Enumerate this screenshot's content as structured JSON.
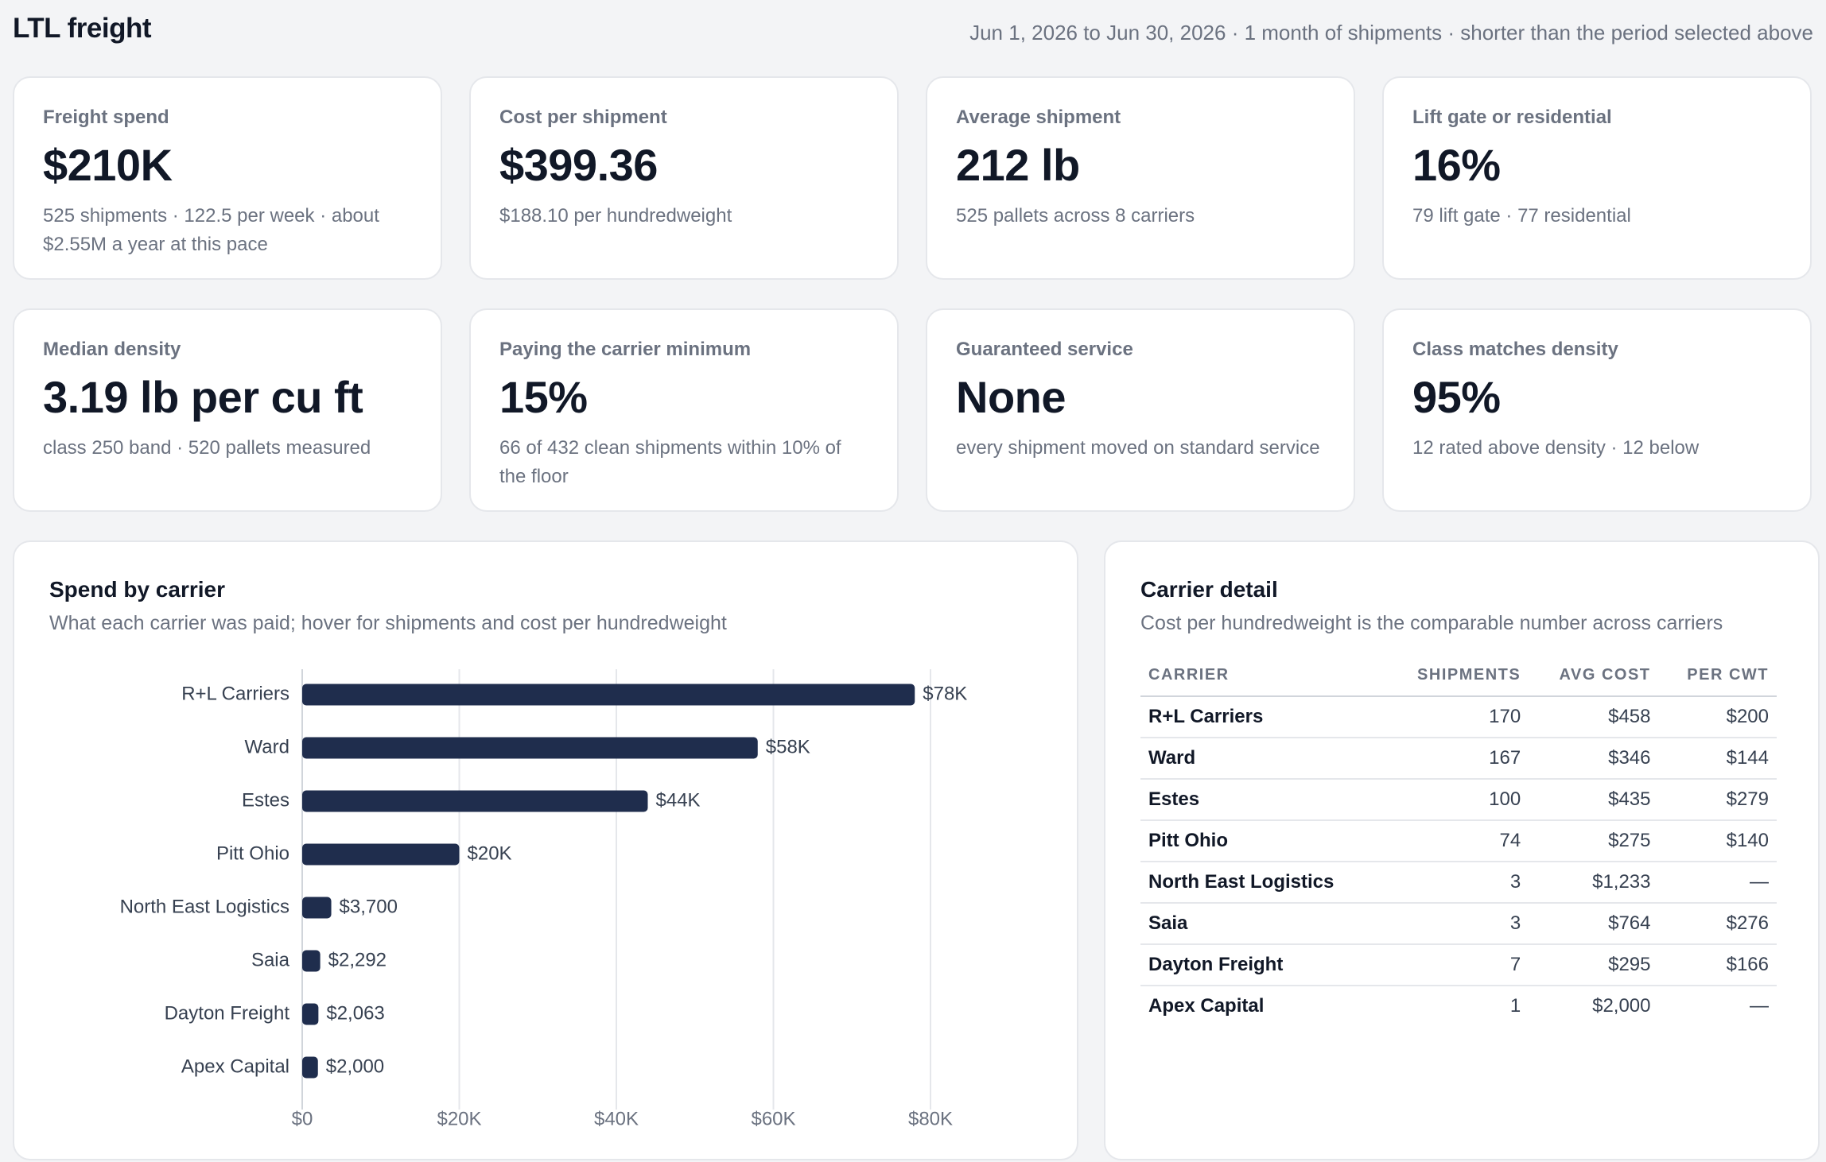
{
  "header": {
    "title": "LTL freight",
    "range": "Jun 1, 2026 to Jun 30, 2026 · 1 month of shipments · shorter than the period selected above"
  },
  "cards": [
    {
      "label": "Freight spend",
      "value": "$210K",
      "sub": "525 shipments · 122.5 per week · about $2.55M a year at this pace"
    },
    {
      "label": "Cost per shipment",
      "value": "$399.36",
      "sub": "$188.10 per hundredweight"
    },
    {
      "label": "Average shipment",
      "value": "212 lb",
      "sub": "525 pallets across 8 carriers"
    },
    {
      "label": "Lift gate or residential",
      "value": "16%",
      "sub": "79 lift gate · 77 residential"
    },
    {
      "label": "Median density",
      "value": "3.19 lb per cu ft",
      "sub": "class 250 band · 520 pallets measured"
    },
    {
      "label": "Paying the carrier minimum",
      "value": "15%",
      "sub": "66 of 432 clean shipments within 10% of the floor"
    },
    {
      "label": "Guaranteed service",
      "value": "None",
      "sub": "every shipment moved on standard service"
    },
    {
      "label": "Class matches density",
      "value": "95%",
      "sub": "12 rated above density · 12 below"
    }
  ],
  "spend_panel": {
    "title": "Spend by carrier",
    "subtitle": "What each carrier was paid; hover for shipments and cost per hundredweight"
  },
  "chart_data": {
    "type": "bar",
    "orientation": "horizontal",
    "categories": [
      "R+L Carriers",
      "Ward",
      "Estes",
      "Pitt Ohio",
      "North East Logistics",
      "Saia",
      "Dayton Freight",
      "Apex Capital"
    ],
    "values": [
      78000,
      58000,
      44000,
      20000,
      3700,
      2292,
      2063,
      2000
    ],
    "value_labels": [
      "$78K",
      "$58K",
      "$44K",
      "$20K",
      "$3,700",
      "$2,292",
      "$2,063",
      "$2,000"
    ],
    "xlim": [
      0,
      80000
    ],
    "xticks": [
      0,
      20000,
      40000,
      60000,
      80000
    ],
    "xtick_labels": [
      "$0",
      "$20K",
      "$40K",
      "$60K",
      "$80K"
    ],
    "grid": true,
    "bar_color": "#1f2d4d"
  },
  "detail_panel": {
    "title": "Carrier detail",
    "subtitle": "Cost per hundredweight is the comparable number across carriers",
    "columns": [
      "CARRIER",
      "SHIPMENTS",
      "AVG COST",
      "PER CWT"
    ],
    "rows": [
      [
        "R+L Carriers",
        "170",
        "$458",
        "$200"
      ],
      [
        "Ward",
        "167",
        "$346",
        "$144"
      ],
      [
        "Estes",
        "100",
        "$435",
        "$279"
      ],
      [
        "Pitt Ohio",
        "74",
        "$275",
        "$140"
      ],
      [
        "North East Logistics",
        "3",
        "$1,233",
        "—"
      ],
      [
        "Saia",
        "3",
        "$764",
        "$276"
      ],
      [
        "Dayton Freight",
        "7",
        "$295",
        "$166"
      ],
      [
        "Apex Capital",
        "1",
        "$2,000",
        "—"
      ]
    ]
  }
}
